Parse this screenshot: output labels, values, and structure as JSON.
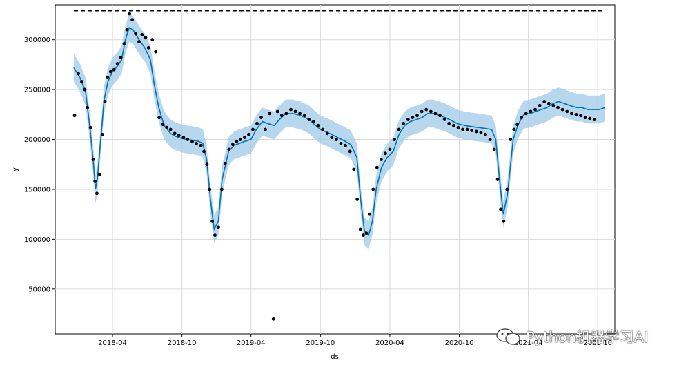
{
  "chart_data": {
    "type": "line",
    "title": "",
    "xlabel": "ds",
    "ylabel": "y",
    "x_ticks": [
      "2018-04",
      "2018-10",
      "2019-04",
      "2019-10",
      "2020-04",
      "2020-10",
      "2021-04",
      "2021-10"
    ],
    "y_ticks": [
      50000,
      100000,
      150000,
      200000,
      250000,
      300000
    ],
    "y_tick_labels": [
      "50000",
      "100000",
      "150000",
      "200000",
      "250000",
      "300000"
    ],
    "xlim": [
      "2017-11-01",
      "2021-11-15"
    ],
    "ylim": [
      5000,
      335000
    ],
    "grid": true,
    "cap": {
      "value": 329000,
      "style": "dashed",
      "color": "#000000",
      "x_range": [
        "2017-12-20",
        "2021-10-20"
      ]
    },
    "colors": {
      "forecast": "#0072B2",
      "interval": "#9ec9e8",
      "actual": "#000000",
      "grid": "#d9d9d9"
    },
    "forecast_series": {
      "name": "yhat",
      "x": [
        "2017-12-20",
        "2018-01-05",
        "2018-01-20",
        "2018-02-01",
        "2018-02-10",
        "2018-02-15",
        "2018-02-20",
        "2018-03-01",
        "2018-03-10",
        "2018-03-20",
        "2018-04-01",
        "2018-04-15",
        "2018-04-25",
        "2018-05-05",
        "2018-05-15",
        "2018-05-25",
        "2018-06-10",
        "2018-06-25",
        "2018-07-10",
        "2018-07-20",
        "2018-08-01",
        "2018-08-15",
        "2018-09-01",
        "2018-09-15",
        "2018-10-01",
        "2018-10-15",
        "2018-11-01",
        "2018-11-15",
        "2018-11-25",
        "2018-12-05",
        "2018-12-15",
        "2018-12-25",
        "2019-01-05",
        "2019-01-15",
        "2019-02-01",
        "2019-02-15",
        "2019-03-01",
        "2019-03-15",
        "2019-04-01",
        "2019-04-15",
        "2019-05-01",
        "2019-05-15",
        "2019-06-01",
        "2019-06-15",
        "2019-07-01",
        "2019-07-20",
        "2019-08-10",
        "2019-09-01",
        "2019-09-15",
        "2019-10-01",
        "2019-10-20",
        "2019-11-10",
        "2019-12-01",
        "2019-12-20",
        "2020-01-05",
        "2020-01-15",
        "2020-01-25",
        "2020-02-05",
        "2020-02-15",
        "2020-02-25",
        "2020-03-10",
        "2020-03-25",
        "2020-04-10",
        "2020-04-25",
        "2020-05-10",
        "2020-05-25",
        "2020-06-10",
        "2020-06-25",
        "2020-07-10",
        "2020-07-25",
        "2020-08-10",
        "2020-08-25",
        "2020-09-10",
        "2020-09-25",
        "2020-10-15",
        "2020-11-01",
        "2020-11-20",
        "2020-12-10",
        "2020-12-25",
        "2021-01-05",
        "2021-01-15",
        "2021-01-25",
        "2021-02-05",
        "2021-02-20",
        "2021-03-05",
        "2021-03-20",
        "2021-04-05",
        "2021-04-20",
        "2021-05-05",
        "2021-05-20",
        "2021-06-05",
        "2021-06-20",
        "2021-07-05",
        "2021-07-20",
        "2021-08-05",
        "2021-08-20",
        "2021-09-05",
        "2021-09-20",
        "2021-10-05",
        "2021-10-20"
      ],
      "values": [
        272000,
        262000,
        248000,
        210000,
        175000,
        150000,
        160000,
        200000,
        240000,
        258000,
        268000,
        274000,
        280000,
        300000,
        312000,
        310000,
        300000,
        292000,
        280000,
        255000,
        232000,
        214000,
        206000,
        203000,
        201000,
        200000,
        199000,
        198000,
        196000,
        180000,
        140000,
        110000,
        118000,
        160000,
        188000,
        194000,
        196000,
        198000,
        200000,
        210000,
        218000,
        216000,
        214000,
        220000,
        226000,
        226000,
        224000,
        220000,
        215000,
        210000,
        207000,
        203000,
        199000,
        195000,
        182000,
        140000,
        108000,
        104000,
        118000,
        150000,
        172000,
        182000,
        188000,
        205000,
        214000,
        218000,
        220000,
        222000,
        226000,
        226000,
        224000,
        222000,
        219000,
        216000,
        214000,
        213000,
        212000,
        211000,
        210000,
        200000,
        160000,
        125000,
        145000,
        200000,
        215000,
        225000,
        226000,
        228000,
        230000,
        232000,
        236000,
        238000,
        236000,
        234000,
        232000,
        232000,
        230000,
        230000,
        230000,
        232000
      ]
    },
    "actual_series": {
      "name": "y",
      "x": [
        "2017-12-22",
        "2018-01-01",
        "2018-01-10",
        "2018-01-18",
        "2018-01-25",
        "2018-02-02",
        "2018-02-09",
        "2018-02-14",
        "2018-02-19",
        "2018-02-26",
        "2018-03-05",
        "2018-03-12",
        "2018-03-19",
        "2018-03-27",
        "2018-04-05",
        "2018-04-14",
        "2018-04-23",
        "2018-05-02",
        "2018-05-09",
        "2018-05-16",
        "2018-05-23",
        "2018-06-01",
        "2018-06-10",
        "2018-06-18",
        "2018-06-27",
        "2018-07-05",
        "2018-07-15",
        "2018-07-24",
        "2018-08-02",
        "2018-08-12",
        "2018-08-22",
        "2018-09-01",
        "2018-09-12",
        "2018-09-23",
        "2018-10-05",
        "2018-10-16",
        "2018-10-28",
        "2018-11-08",
        "2018-11-20",
        "2018-11-28",
        "2018-12-06",
        "2018-12-13",
        "2018-12-20",
        "2018-12-27",
        "2019-01-05",
        "2019-01-14",
        "2019-01-23",
        "2019-02-02",
        "2019-02-12",
        "2019-02-22",
        "2019-03-04",
        "2019-03-15",
        "2019-03-26",
        "2019-04-06",
        "2019-04-17",
        "2019-04-28",
        "2019-05-09",
        "2019-05-20",
        "2019-05-30",
        "2019-06-10",
        "2019-06-21",
        "2019-07-03",
        "2019-07-15",
        "2019-07-27",
        "2019-08-08",
        "2019-08-20",
        "2019-09-01",
        "2019-09-13",
        "2019-09-25",
        "2019-10-07",
        "2019-10-19",
        "2019-10-31",
        "2019-11-12",
        "2019-11-24",
        "2019-12-06",
        "2019-12-18",
        "2019-12-28",
        "2020-01-06",
        "2020-01-14",
        "2020-01-22",
        "2020-01-30",
        "2020-02-08",
        "2020-02-17",
        "2020-02-27",
        "2020-03-09",
        "2020-03-20",
        "2020-04-01",
        "2020-04-13",
        "2020-04-25",
        "2020-05-07",
        "2020-05-19",
        "2020-05-31",
        "2020-06-12",
        "2020-06-24",
        "2020-07-06",
        "2020-07-18",
        "2020-07-30",
        "2020-08-11",
        "2020-08-23",
        "2020-09-04",
        "2020-09-16",
        "2020-09-28",
        "2020-10-10",
        "2020-10-22",
        "2020-11-03",
        "2020-11-15",
        "2020-11-27",
        "2020-12-09",
        "2020-12-21",
        "2021-01-01",
        "2021-01-10",
        "2021-01-18",
        "2021-01-26",
        "2021-02-04",
        "2021-02-13",
        "2021-02-22",
        "2021-03-03",
        "2021-03-14",
        "2021-03-26",
        "2021-04-07",
        "2021-04-19",
        "2021-05-01",
        "2021-05-13",
        "2021-05-25",
        "2021-06-06",
        "2021-06-18",
        "2021-06-30",
        "2021-07-12",
        "2021-07-24",
        "2021-08-05",
        "2021-08-17",
        "2021-08-29",
        "2021-09-10",
        "2021-09-22"
      ],
      "values": [
        224000,
        266000,
        258000,
        250000,
        232000,
        212000,
        180000,
        158000,
        146000,
        165000,
        205000,
        238000,
        262000,
        268000,
        270000,
        276000,
        282000,
        296000,
        310000,
        326000,
        320000,
        306000,
        298000,
        305000,
        302000,
        292000,
        300000,
        288000,
        222000,
        215000,
        212000,
        210000,
        206000,
        204000,
        202000,
        200000,
        198000,
        196000,
        194000,
        188000,
        175000,
        150000,
        118000,
        104000,
        112000,
        150000,
        176000,
        190000,
        195000,
        198000,
        200000,
        202000,
        205000,
        210000,
        216000,
        222000,
        210000,
        226000,
        20000,
        228000,
        224000,
        226000,
        230000,
        228000,
        226000,
        224000,
        220000,
        218000,
        214000,
        210000,
        206000,
        202000,
        200000,
        196000,
        194000,
        188000,
        170000,
        140000,
        110000,
        104000,
        106000,
        125000,
        150000,
        172000,
        180000,
        186000,
        190000,
        200000,
        210000,
        216000,
        220000,
        222000,
        224000,
        228000,
        230000,
        228000,
        226000,
        224000,
        220000,
        216000,
        214000,
        212000,
        210000,
        210000,
        209000,
        208000,
        207000,
        205000,
        200000,
        190000,
        160000,
        130000,
        118000,
        150000,
        200000,
        210000,
        215000,
        222000,
        226000,
        228000,
        230000,
        234000,
        238000,
        236000,
        234000,
        232000,
        230000,
        228000,
        226000,
        225000,
        224000,
        222000,
        221000,
        220000
      ]
    }
  },
  "watermark": {
    "text": "Python机器学习AI"
  }
}
